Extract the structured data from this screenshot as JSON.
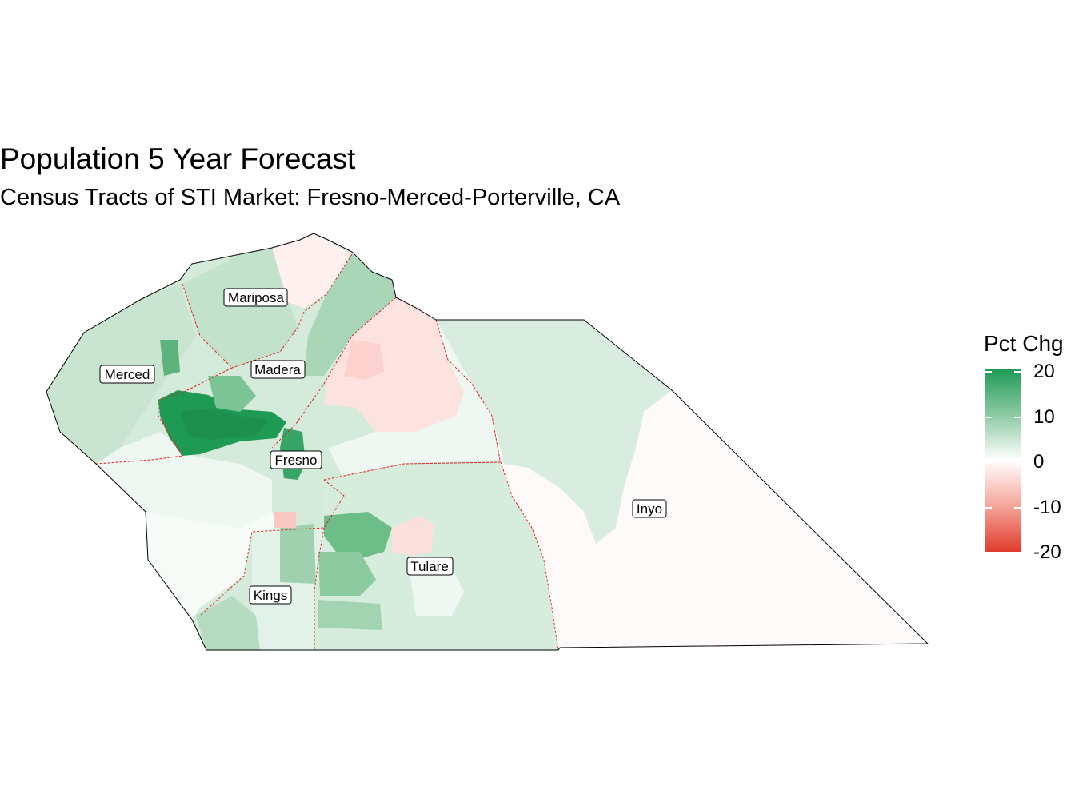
{
  "title": "Population 5 Year Forecast",
  "subtitle": "Census Tracts of STI Market: Fresno-Merced-Porterville, CA",
  "legend": {
    "title": "Pct Chg",
    "ticks": [
      "20",
      "10",
      "0",
      "-10",
      "-20"
    ],
    "tick_values": [
      20,
      10,
      0,
      -10,
      -20
    ],
    "range": [
      -20,
      20
    ],
    "colors": {
      "high": "#1e9a55",
      "mid": "#ffffff",
      "low": "#e03b2c"
    }
  },
  "counties": [
    {
      "name": "Mariposa",
      "pct_chg_approx": 6
    },
    {
      "name": "Merced",
      "pct_chg_approx": 6
    },
    {
      "name": "Madera",
      "pct_chg_approx": 8
    },
    {
      "name": "Fresno",
      "pct_chg_approx": 5
    },
    {
      "name": "Kings",
      "pct_chg_approx": 4
    },
    {
      "name": "Tulare",
      "pct_chg_approx": 5
    },
    {
      "name": "Inyo",
      "pct_chg_approx": 0
    }
  ],
  "colors": {
    "market_outline": "#000000",
    "county_border": "#e0201c"
  }
}
